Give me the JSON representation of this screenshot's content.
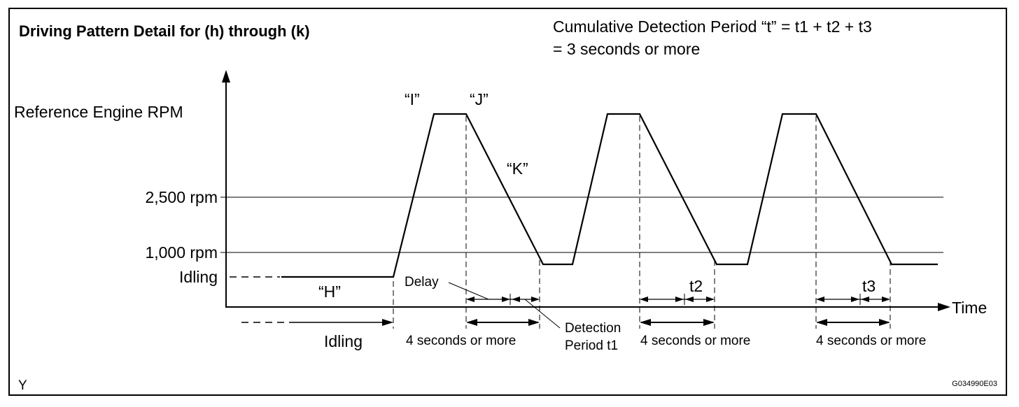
{
  "header": {
    "title": "Driving Pattern Detail for (h) through (k)",
    "cumulative_line1": "Cumulative Detection Period “t” = t1 + t2 + t3",
    "cumulative_line2": "= 3 seconds or more"
  },
  "axes": {
    "y_label": "Reference Engine RPM",
    "level_2500": "2,500 rpm",
    "level_1000": "1,000 rpm",
    "level_idling": "Idling",
    "x_label": "Time"
  },
  "points": {
    "h": "“H”",
    "i": "“I”",
    "j": "“J”",
    "k": "“K”"
  },
  "annotations": {
    "idling": "Idling",
    "delay": "Delay",
    "detection_line1": "Detection",
    "detection_line2": "Period t1",
    "four_seconds": "4 seconds or more",
    "t2": "t2",
    "t3": "t3"
  },
  "footer": {
    "corner_letter": "Y",
    "figure_code": "G034990E03"
  }
}
